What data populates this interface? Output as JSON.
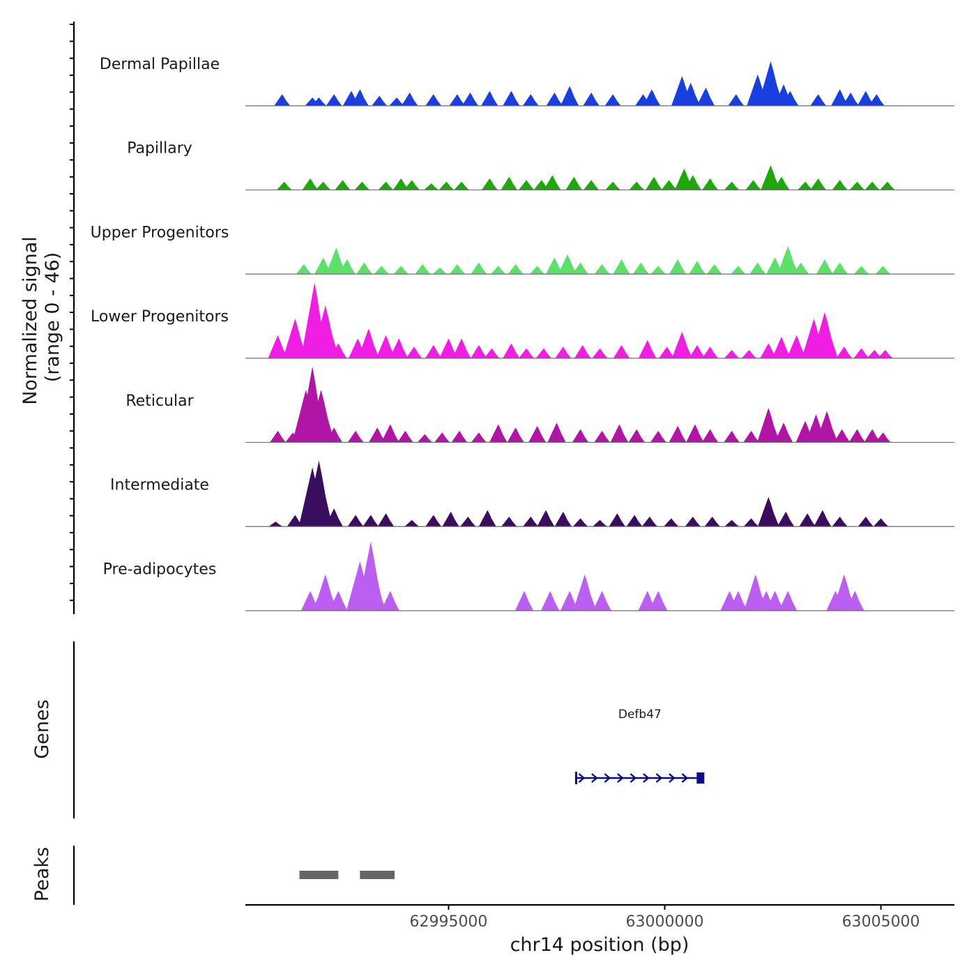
{
  "chart_data": {
    "type": "area",
    "title": "",
    "signal_axis_label": "Normalized signal",
    "signal_axis_range_label": "(range 0 - 46)",
    "signal_range": [
      0,
      46
    ],
    "genes_label": "Genes",
    "peaks_label": "Peaks",
    "xlabel": "chr14 position (bp)",
    "xlim": [
      62990300,
      63006700
    ],
    "x_ticks": [
      62995000,
      63000000,
      63005000
    ],
    "x_tick_labels": [
      "62995000",
      "63000000",
      "63005000"
    ],
    "tracks": [
      {
        "name": "Dermal Papillae",
        "color": "#1a3fe0",
        "peaks": [
          [
            62991150,
            7
          ],
          [
            62991850,
            5
          ],
          [
            62992000,
            5
          ],
          [
            62992350,
            7
          ],
          [
            62992750,
            9
          ],
          [
            62992950,
            10
          ],
          [
            62993400,
            6
          ],
          [
            62993800,
            5
          ],
          [
            62994100,
            8
          ],
          [
            62994650,
            7
          ],
          [
            62995200,
            7
          ],
          [
            62995500,
            8
          ],
          [
            62995950,
            9
          ],
          [
            62996450,
            9
          ],
          [
            62996900,
            7
          ],
          [
            62997450,
            8
          ],
          [
            62997800,
            12
          ],
          [
            62998300,
            8
          ],
          [
            62998800,
            7
          ],
          [
            62999500,
            7
          ],
          [
            62999700,
            10
          ],
          [
            63000400,
            18
          ],
          [
            63000600,
            14
          ],
          [
            63000950,
            11
          ],
          [
            63001650,
            7
          ],
          [
            63002150,
            19
          ],
          [
            63002450,
            27
          ],
          [
            63002750,
            13
          ],
          [
            63002900,
            9
          ],
          [
            63003550,
            7
          ],
          [
            63004050,
            10
          ],
          [
            63004300,
            8
          ],
          [
            63004650,
            9
          ],
          [
            63004900,
            7
          ]
        ]
      },
      {
        "name": "Papillary",
        "color": "#1ea80c",
        "peaks": [
          [
            62991200,
            5
          ],
          [
            62991800,
            7
          ],
          [
            62992100,
            5
          ],
          [
            62992550,
            6
          ],
          [
            62993000,
            5
          ],
          [
            62993550,
            5
          ],
          [
            62993900,
            7
          ],
          [
            62994150,
            6
          ],
          [
            62994600,
            4
          ],
          [
            62994950,
            5
          ],
          [
            62995300,
            5
          ],
          [
            62995950,
            7
          ],
          [
            62996400,
            8
          ],
          [
            62996800,
            6
          ],
          [
            62997150,
            6
          ],
          [
            62997400,
            9
          ],
          [
            62997900,
            8
          ],
          [
            62998300,
            6
          ],
          [
            62998800,
            5
          ],
          [
            62999350,
            5
          ],
          [
            62999750,
            8
          ],
          [
            63000100,
            6
          ],
          [
            63000450,
            13
          ],
          [
            63000650,
            9
          ],
          [
            63001050,
            7
          ],
          [
            63001550,
            5
          ],
          [
            63002050,
            6
          ],
          [
            63002450,
            15
          ],
          [
            63002700,
            8
          ],
          [
            63003250,
            5
          ],
          [
            63003550,
            7
          ],
          [
            63004050,
            6
          ],
          [
            63004450,
            5
          ],
          [
            63004800,
            5
          ],
          [
            63005150,
            5
          ]
        ]
      },
      {
        "name": "Upper Progenitors",
        "color": "#5ce06a",
        "peaks": [
          [
            62991650,
            6
          ],
          [
            62992100,
            10
          ],
          [
            62992400,
            16
          ],
          [
            62992650,
            9
          ],
          [
            62993050,
            7
          ],
          [
            62993450,
            5
          ],
          [
            62993900,
            5
          ],
          [
            62994400,
            6
          ],
          [
            62994800,
            4
          ],
          [
            62995200,
            6
          ],
          [
            62995700,
            7
          ],
          [
            62996150,
            5
          ],
          [
            62996550,
            6
          ],
          [
            62997050,
            5
          ],
          [
            62997450,
            10
          ],
          [
            62997750,
            12
          ],
          [
            62998050,
            7
          ],
          [
            62998550,
            6
          ],
          [
            62999000,
            9
          ],
          [
            62999450,
            7
          ],
          [
            62999850,
            5
          ],
          [
            63000300,
            9
          ],
          [
            63000750,
            8
          ],
          [
            63001150,
            6
          ],
          [
            63001700,
            5
          ],
          [
            63002150,
            7
          ],
          [
            63002550,
            10
          ],
          [
            63002850,
            17
          ],
          [
            63003150,
            7
          ],
          [
            63003700,
            9
          ],
          [
            63004050,
            7
          ],
          [
            63004550,
            5
          ],
          [
            63005050,
            5
          ]
        ]
      },
      {
        "name": "Lower Progenitors",
        "color": "#f01de2",
        "peaks": [
          [
            62991050,
            14
          ],
          [
            62991450,
            24
          ],
          [
            62991900,
            46
          ],
          [
            62992150,
            32
          ],
          [
            62992450,
            9
          ],
          [
            62992900,
            12
          ],
          [
            62993150,
            18
          ],
          [
            62993550,
            14
          ],
          [
            62993850,
            12
          ],
          [
            62994200,
            7
          ],
          [
            62994650,
            8
          ],
          [
            62995000,
            12
          ],
          [
            62995300,
            12
          ],
          [
            62995700,
            8
          ],
          [
            62996000,
            6
          ],
          [
            62996450,
            9
          ],
          [
            62996800,
            6
          ],
          [
            62997200,
            6
          ],
          [
            62997650,
            7
          ],
          [
            62998100,
            8
          ],
          [
            62998500,
            6
          ],
          [
            62999000,
            8
          ],
          [
            62999600,
            11
          ],
          [
            63000050,
            7
          ],
          [
            63000400,
            16
          ],
          [
            63000750,
            8
          ],
          [
            63001050,
            7
          ],
          [
            63001550,
            5
          ],
          [
            63001950,
            5
          ],
          [
            63002400,
            9
          ],
          [
            63002700,
            13
          ],
          [
            63003050,
            14
          ],
          [
            63003450,
            24
          ],
          [
            63003700,
            28
          ],
          [
            63004150,
            7
          ],
          [
            63004550,
            6
          ],
          [
            63004850,
            5
          ],
          [
            63005100,
            5
          ]
        ]
      },
      {
        "name": "Reticular",
        "color": "#b015a6",
        "peaks": [
          [
            62991050,
            7
          ],
          [
            62991400,
            6
          ],
          [
            62991700,
            32
          ],
          [
            62991850,
            46
          ],
          [
            62992050,
            32
          ],
          [
            62992350,
            9
          ],
          [
            62992850,
            7
          ],
          [
            62993350,
            9
          ],
          [
            62993650,
            11
          ],
          [
            62994000,
            7
          ],
          [
            62994450,
            5
          ],
          [
            62994850,
            6
          ],
          [
            62995250,
            7
          ],
          [
            62995700,
            6
          ],
          [
            62996150,
            11
          ],
          [
            62996550,
            9
          ],
          [
            62997050,
            10
          ],
          [
            62997500,
            12
          ],
          [
            62998050,
            8
          ],
          [
            62998550,
            7
          ],
          [
            62998950,
            11
          ],
          [
            62999350,
            8
          ],
          [
            62999850,
            7
          ],
          [
            63000300,
            10
          ],
          [
            63000700,
            11
          ],
          [
            63001050,
            8
          ],
          [
            63001550,
            7
          ],
          [
            63002000,
            7
          ],
          [
            63002400,
            21
          ],
          [
            63002750,
            12
          ],
          [
            63003250,
            13
          ],
          [
            63003500,
            17
          ],
          [
            63003750,
            19
          ],
          [
            63004100,
            8
          ],
          [
            63004450,
            8
          ],
          [
            63004800,
            8
          ],
          [
            63005050,
            6
          ]
        ]
      },
      {
        "name": "Intermediate",
        "color": "#3a0e5e",
        "peaks": [
          [
            62991000,
            3
          ],
          [
            62991450,
            7
          ],
          [
            62991850,
            36
          ],
          [
            62992000,
            40
          ],
          [
            62992350,
            11
          ],
          [
            62992850,
            7
          ],
          [
            62993200,
            7
          ],
          [
            62993550,
            8
          ],
          [
            62994150,
            4
          ],
          [
            62994650,
            7
          ],
          [
            62995050,
            9
          ],
          [
            62995450,
            6
          ],
          [
            62995900,
            10
          ],
          [
            62996400,
            6
          ],
          [
            62996900,
            6
          ],
          [
            62997250,
            10
          ],
          [
            62997650,
            9
          ],
          [
            62998050,
            5
          ],
          [
            62998500,
            4
          ],
          [
            62998900,
            8
          ],
          [
            62999300,
            7
          ],
          [
            62999650,
            6
          ],
          [
            63000150,
            5
          ],
          [
            63000650,
            6
          ],
          [
            63001100,
            6
          ],
          [
            63001550,
            4
          ],
          [
            63002000,
            5
          ],
          [
            63002400,
            18
          ],
          [
            63002800,
            9
          ],
          [
            63003300,
            8
          ],
          [
            63003650,
            10
          ],
          [
            63004050,
            6
          ],
          [
            63004650,
            6
          ],
          [
            63005000,
            5
          ]
        ]
      },
      {
        "name": "Pre-adipocytes",
        "color": "#bb5ef2",
        "peaks": [
          [
            62991800,
            12
          ],
          [
            62992050,
            12
          ],
          [
            62992150,
            22
          ],
          [
            62992450,
            12
          ],
          [
            62992950,
            30
          ],
          [
            62993200,
            42
          ],
          [
            62993300,
            20
          ],
          [
            62993650,
            12
          ],
          [
            62996750,
            12
          ],
          [
            62997350,
            12
          ],
          [
            62997800,
            12
          ],
          [
            62998150,
            22
          ],
          [
            62998550,
            12
          ],
          [
            62999600,
            12
          ],
          [
            62999850,
            12
          ],
          [
            63001500,
            12
          ],
          [
            63001700,
            12
          ],
          [
            63002100,
            22
          ],
          [
            63002350,
            12
          ],
          [
            63002550,
            12
          ],
          [
            63002850,
            12
          ],
          [
            63003950,
            12
          ],
          [
            63004150,
            22
          ],
          [
            63004400,
            12
          ]
        ]
      }
    ],
    "gene": {
      "name": "Defb47",
      "start": 62997950,
      "end": 63000900,
      "strand": "+",
      "color": "#0a0a8a"
    },
    "peak_regions": [
      [
        62991550,
        62992450
      ],
      [
        62992950,
        62993750
      ]
    ],
    "peak_color": "#666666"
  }
}
